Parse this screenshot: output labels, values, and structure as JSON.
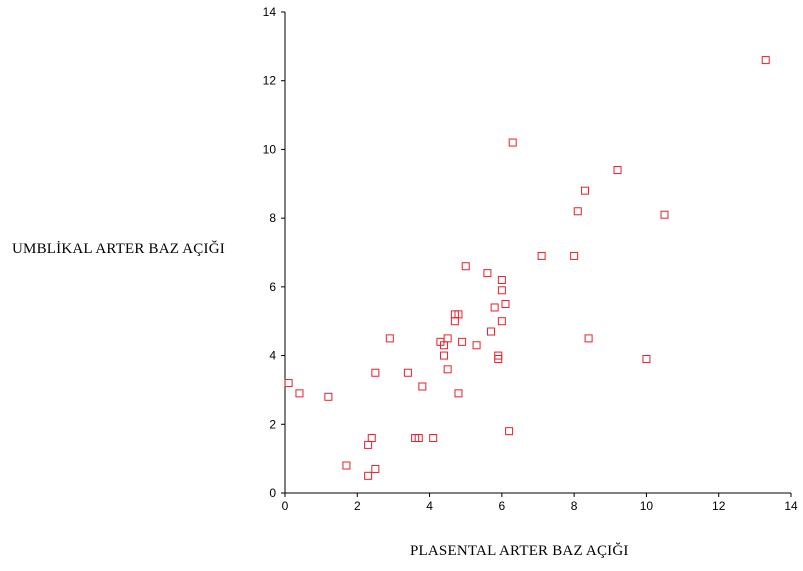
{
  "chart_data": {
    "type": "scatter",
    "title": "",
    "xlabel": "PLASENTAL ARTER BAZ AÇIĞI",
    "ylabel": "UMBLİKAL ARTER BAZ AÇIĞI",
    "xlim": [
      0,
      14
    ],
    "ylim": [
      0,
      14
    ],
    "xticks": [
      0,
      2,
      4,
      6,
      8,
      10,
      12,
      14
    ],
    "yticks": [
      0,
      2,
      4,
      6,
      8,
      10,
      12,
      14
    ],
    "grid": false,
    "marker": "hollow-square",
    "marker_color": "#e8202a",
    "points": [
      {
        "x": 0.1,
        "y": 3.2
      },
      {
        "x": 0.4,
        "y": 2.9
      },
      {
        "x": 1.2,
        "y": 2.8
      },
      {
        "x": 1.7,
        "y": 0.8
      },
      {
        "x": 2.3,
        "y": 0.5
      },
      {
        "x": 2.3,
        "y": 1.4
      },
      {
        "x": 2.4,
        "y": 1.6
      },
      {
        "x": 2.5,
        "y": 0.7
      },
      {
        "x": 2.5,
        "y": 3.5
      },
      {
        "x": 2.9,
        "y": 4.5
      },
      {
        "x": 3.4,
        "y": 3.5
      },
      {
        "x": 3.6,
        "y": 1.6
      },
      {
        "x": 3.7,
        "y": 1.6
      },
      {
        "x": 3.8,
        "y": 3.1
      },
      {
        "x": 4.1,
        "y": 1.6
      },
      {
        "x": 4.3,
        "y": 4.4
      },
      {
        "x": 4.4,
        "y": 4.3
      },
      {
        "x": 4.4,
        "y": 4.0
      },
      {
        "x": 4.5,
        "y": 3.6
      },
      {
        "x": 4.5,
        "y": 4.5
      },
      {
        "x": 4.7,
        "y": 5.0
      },
      {
        "x": 4.7,
        "y": 5.2
      },
      {
        "x": 4.8,
        "y": 5.2
      },
      {
        "x": 4.8,
        "y": 2.9
      },
      {
        "x": 4.9,
        "y": 4.4
      },
      {
        "x": 5.0,
        "y": 6.6
      },
      {
        "x": 5.3,
        "y": 4.3
      },
      {
        "x": 5.6,
        "y": 6.4
      },
      {
        "x": 5.7,
        "y": 4.7
      },
      {
        "x": 5.8,
        "y": 5.4
      },
      {
        "x": 5.9,
        "y": 4.0
      },
      {
        "x": 5.9,
        "y": 3.9
      },
      {
        "x": 6.0,
        "y": 6.2
      },
      {
        "x": 6.0,
        "y": 5.9
      },
      {
        "x": 6.0,
        "y": 5.0
      },
      {
        "x": 6.1,
        "y": 5.5
      },
      {
        "x": 6.2,
        "y": 1.8
      },
      {
        "x": 6.3,
        "y": 10.2
      },
      {
        "x": 7.1,
        "y": 6.9
      },
      {
        "x": 8.0,
        "y": 6.9
      },
      {
        "x": 8.1,
        "y": 8.2
      },
      {
        "x": 8.3,
        "y": 8.8
      },
      {
        "x": 8.4,
        "y": 4.5
      },
      {
        "x": 9.2,
        "y": 9.4
      },
      {
        "x": 10.0,
        "y": 3.9
      },
      {
        "x": 10.5,
        "y": 8.1
      },
      {
        "x": 13.3,
        "y": 12.6
      }
    ]
  }
}
